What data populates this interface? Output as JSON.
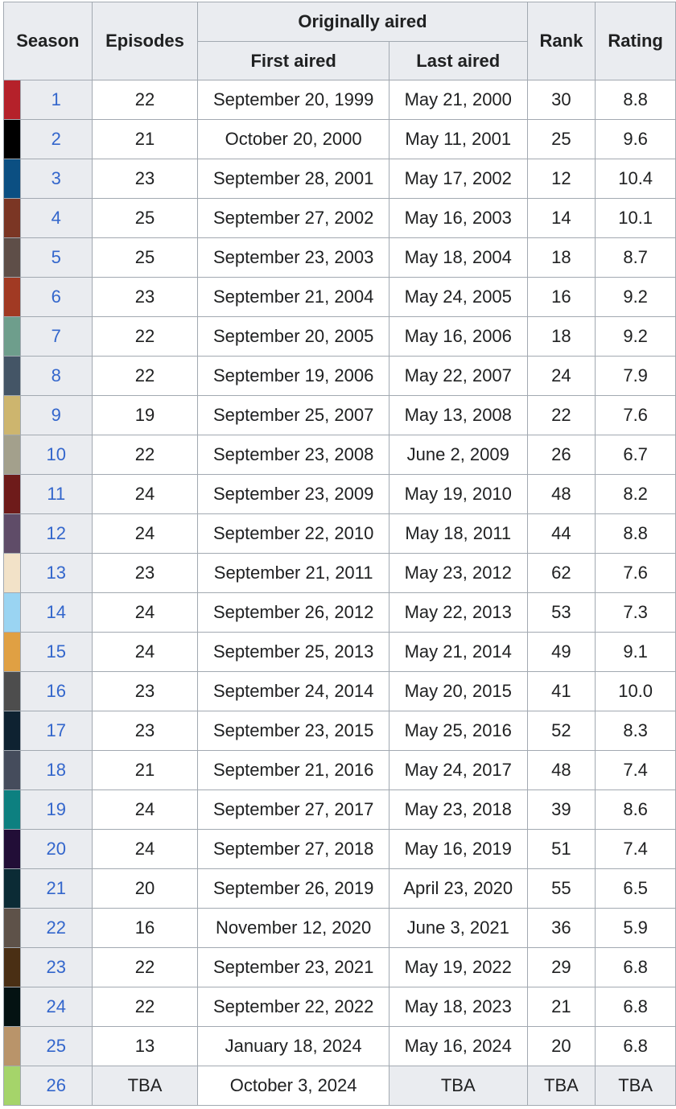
{
  "table": {
    "headers": {
      "season": "Season",
      "episodes": "Episodes",
      "originally_aired": "Originally aired",
      "first_aired": "First aired",
      "last_aired": "Last aired",
      "rank": "Rank",
      "rating": "Rating"
    },
    "rows": [
      {
        "color": "#b5212a",
        "season": "1",
        "episodes": "22",
        "first_aired": "September 20, 1999",
        "last_aired": "May 21, 2000",
        "rank": "30",
        "rating": "8.8"
      },
      {
        "color": "#000000",
        "season": "2",
        "episodes": "21",
        "first_aired": "October 20, 2000",
        "last_aired": "May 11, 2001",
        "rank": "25",
        "rating": "9.6"
      },
      {
        "color": "#0b4f82",
        "season": "3",
        "episodes": "23",
        "first_aired": "September 28, 2001",
        "last_aired": "May 17, 2002",
        "rank": "12",
        "rating": "10.4"
      },
      {
        "color": "#7b3624",
        "season": "4",
        "episodes": "25",
        "first_aired": "September 27, 2002",
        "last_aired": "May 16, 2003",
        "rank": "14",
        "rating": "10.1"
      },
      {
        "color": "#5e4e48",
        "season": "5",
        "episodes": "25",
        "first_aired": "September 23, 2003",
        "last_aired": "May 18, 2004",
        "rank": "18",
        "rating": "8.7"
      },
      {
        "color": "#a13a23",
        "season": "6",
        "episodes": "23",
        "first_aired": "September 21, 2004",
        "last_aired": "May 24, 2005",
        "rank": "16",
        "rating": "9.2"
      },
      {
        "color": "#6e9e8c",
        "season": "7",
        "episodes": "22",
        "first_aired": "September 20, 2005",
        "last_aired": "May 16, 2006",
        "rank": "18",
        "rating": "9.2"
      },
      {
        "color": "#445566",
        "season": "8",
        "episodes": "22",
        "first_aired": "September 19, 2006",
        "last_aired": "May 22, 2007",
        "rank": "24",
        "rating": "7.9"
      },
      {
        "color": "#cdb56e",
        "season": "9",
        "episodes": "19",
        "first_aired": "September 25, 2007",
        "last_aired": "May 13, 2008",
        "rank": "22",
        "rating": "7.6"
      },
      {
        "color": "#a3a08c",
        "season": "10",
        "episodes": "22",
        "first_aired": "September 23, 2008",
        "last_aired": "June 2, 2009",
        "rank": "26",
        "rating": "6.7"
      },
      {
        "color": "#6e1b1a",
        "season": "11",
        "episodes": "24",
        "first_aired": "September 23, 2009",
        "last_aired": "May 19, 2010",
        "rank": "48",
        "rating": "8.2"
      },
      {
        "color": "#5f4c68",
        "season": "12",
        "episodes": "24",
        "first_aired": "September 22, 2010",
        "last_aired": "May 18, 2011",
        "rank": "44",
        "rating": "8.8"
      },
      {
        "color": "#f2e2c8",
        "season": "13",
        "episodes": "23",
        "first_aired": "September 21, 2011",
        "last_aired": "May 23, 2012",
        "rank": "62",
        "rating": "7.6"
      },
      {
        "color": "#9ad4f2",
        "season": "14",
        "episodes": "24",
        "first_aired": "September 26, 2012",
        "last_aired": "May 22, 2013",
        "rank": "53",
        "rating": "7.3"
      },
      {
        "color": "#e0a043",
        "season": "15",
        "episodes": "24",
        "first_aired": "September 25, 2013",
        "last_aired": "May 21, 2014",
        "rank": "49",
        "rating": "9.1"
      },
      {
        "color": "#4d4d4d",
        "season": "16",
        "episodes": "23",
        "first_aired": "September 24, 2014",
        "last_aired": "May 20, 2015",
        "rank": "41",
        "rating": "10.0"
      },
      {
        "color": "#0e2231",
        "season": "17",
        "episodes": "23",
        "first_aired": "September 23, 2015",
        "last_aired": "May 25, 2016",
        "rank": "52",
        "rating": "8.3"
      },
      {
        "color": "#454c5c",
        "season": "18",
        "episodes": "21",
        "first_aired": "September 21, 2016",
        "last_aired": "May 24, 2017",
        "rank": "48",
        "rating": "7.4"
      },
      {
        "color": "#0d8080",
        "season": "19",
        "episodes": "24",
        "first_aired": "September 27, 2017",
        "last_aired": "May 23, 2018",
        "rank": "39",
        "rating": "8.6"
      },
      {
        "color": "#220e37",
        "season": "20",
        "episodes": "24",
        "first_aired": "September 27, 2018",
        "last_aired": "May 16, 2019",
        "rank": "51",
        "rating": "7.4"
      },
      {
        "color": "#0b2b35",
        "season": "21",
        "episodes": "20",
        "first_aired": "September 26, 2019",
        "last_aired": "April 23, 2020",
        "rank": "55",
        "rating": "6.5"
      },
      {
        "color": "#5e5249",
        "season": "22",
        "episodes": "16",
        "first_aired": "November 12, 2020",
        "last_aired": "June 3, 2021",
        "rank": "36",
        "rating": "5.9"
      },
      {
        "color": "#4a2f14",
        "season": "23",
        "episodes": "22",
        "first_aired": "September 23, 2021",
        "last_aired": "May 19, 2022",
        "rank": "29",
        "rating": "6.8"
      },
      {
        "color": "#041212",
        "season": "24",
        "episodes": "22",
        "first_aired": "September 22, 2022",
        "last_aired": "May 18, 2023",
        "rank": "21",
        "rating": "6.8"
      },
      {
        "color": "#b9946a",
        "season": "25",
        "episodes": "13",
        "first_aired": "January 18, 2024",
        "last_aired": "May 16, 2024",
        "rank": "20",
        "rating": "6.8"
      },
      {
        "color": "#a5d46a",
        "season": "26",
        "episodes": "TBA",
        "first_aired": "October 3, 2024",
        "last_aired": "TBA",
        "rank": "TBA",
        "rating": "TBA"
      }
    ]
  }
}
